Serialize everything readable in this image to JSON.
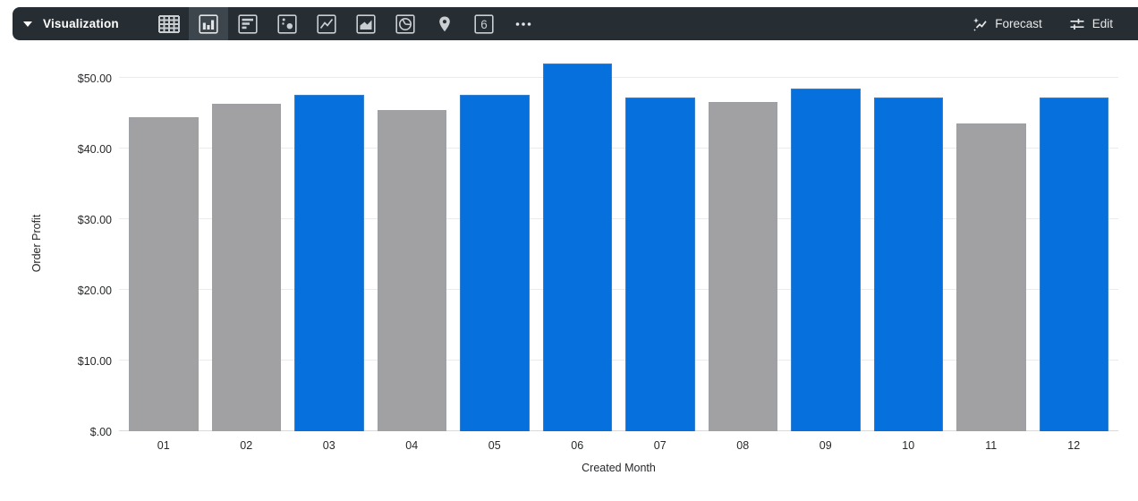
{
  "toolbar": {
    "title": "Visualization",
    "chart_types": [
      {
        "name": "table",
        "selected": false
      },
      {
        "name": "column",
        "selected": true
      },
      {
        "name": "bar",
        "selected": false
      },
      {
        "name": "scatter",
        "selected": false
      },
      {
        "name": "line",
        "selected": false
      },
      {
        "name": "area",
        "selected": false
      },
      {
        "name": "pie",
        "selected": false
      },
      {
        "name": "map",
        "selected": false
      },
      {
        "name": "single-value",
        "selected": false
      },
      {
        "name": "more",
        "selected": false
      }
    ],
    "single_value_glyph": "6",
    "forecast_label": "Forecast",
    "edit_label": "Edit",
    "colors": {
      "background": "#262D33",
      "selected_bg": "#3D464D",
      "icon": "#C9CED3",
      "text": "#FFFFFF"
    }
  },
  "chart_data": {
    "type": "bar",
    "title": "",
    "xlabel": "Created Month",
    "ylabel": "Order Profit",
    "categories": [
      "01",
      "02",
      "03",
      "04",
      "05",
      "06",
      "07",
      "08",
      "09",
      "10",
      "11",
      "12"
    ],
    "values": [
      44.5,
      46.4,
      47.6,
      45.5,
      47.6,
      52.0,
      47.2,
      46.6,
      48.5,
      47.2,
      43.6,
      47.2
    ],
    "bar_colors": [
      "gray",
      "gray",
      "blue",
      "gray",
      "blue",
      "blue",
      "blue",
      "gray",
      "blue",
      "blue",
      "gray",
      "blue"
    ],
    "palette": {
      "blue": "#0671DD",
      "gray": "#A1A1A3"
    },
    "ylim": [
      0,
      53.2
    ],
    "yticks": {
      "values": [
        0,
        10,
        20,
        30,
        40,
        50
      ],
      "labels": [
        "$.00",
        "$10.00",
        "$20.00",
        "$30.00",
        "$40.00",
        "$50.00"
      ]
    },
    "grid": true,
    "legend": "none"
  }
}
